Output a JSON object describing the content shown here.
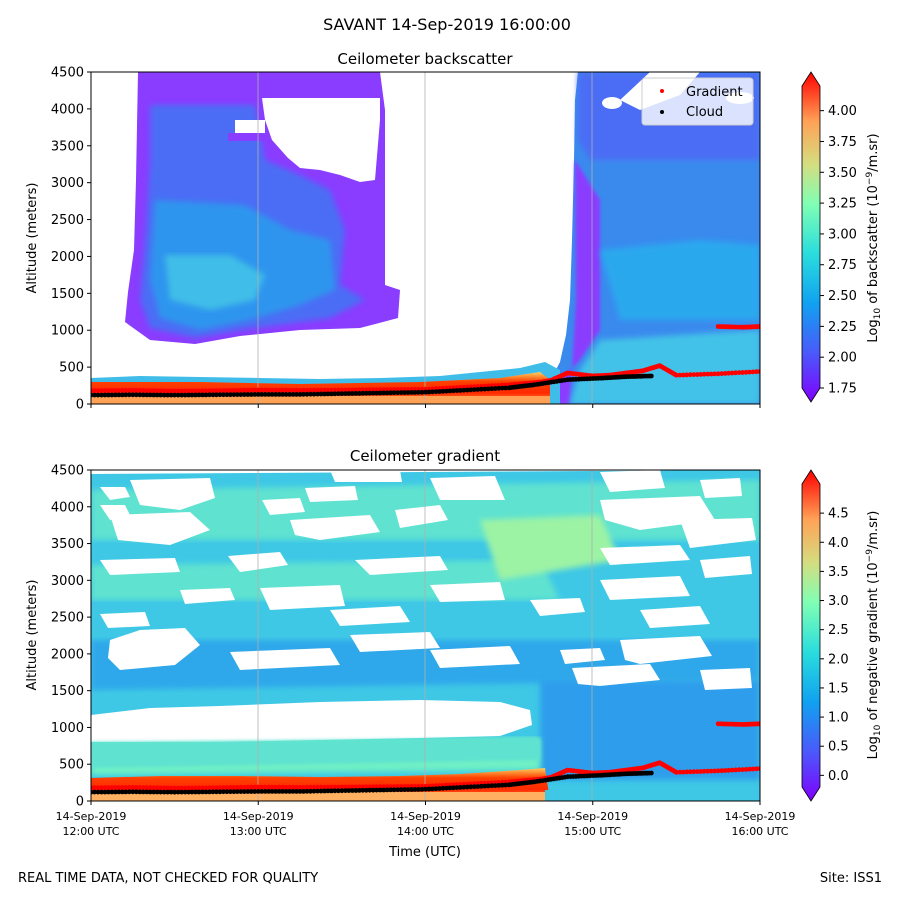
{
  "figure": {
    "suptitle": "SAVANT 14-Sep-2019 16:00:00",
    "footer_left": "REAL TIME DATA, NOT CHECKED FOR QUALITY",
    "footer_right": "Site: ISS1"
  },
  "chart_data": [
    {
      "type": "heatmap",
      "title": "Ceilometer backscatter",
      "ylabel": "Altitude (meters)",
      "xlabel": "",
      "ylim": [
        0,
        4500
      ],
      "yticks": [
        0,
        500,
        1000,
        1500,
        2000,
        2500,
        3000,
        3500,
        4000,
        4500
      ],
      "xlim_hours_utc": [
        12,
        16
      ],
      "xgrid_hours_utc": [
        13,
        14,
        15
      ],
      "colorbar": {
        "label_prefix": "Log",
        "label_sub": "10",
        "label_mid": " of backscatter (10",
        "label_sup": "−9",
        "label_suffix": "/m.sr)",
        "range": [
          1.75,
          4.2
        ],
        "ticks": [
          "1.75",
          "2.00",
          "2.25",
          "2.50",
          "2.75",
          "3.00",
          "3.25",
          "3.50",
          "3.75",
          "4.00"
        ],
        "colormap": "rainbow"
      },
      "legend": {
        "position": "upper-right",
        "entries": [
          {
            "label": "Gradient",
            "color": "#ff0000"
          },
          {
            "label": "Cloud",
            "color": "#000000"
          }
        ]
      },
      "series": [
        {
          "name": "Gradient",
          "color": "#ff0000",
          "x_hours": [
            12.0,
            12.25,
            12.5,
            12.75,
            13.0,
            13.25,
            13.5,
            13.75,
            14.0,
            14.25,
            14.5,
            14.7,
            14.75,
            14.85,
            15.0,
            15.1,
            15.2,
            15.3,
            15.4,
            15.5,
            15.75,
            16.0
          ],
          "altitude_m": [
            180,
            185,
            175,
            180,
            190,
            185,
            190,
            195,
            200,
            230,
            260,
            300,
            320,
            420,
            380,
            390,
            420,
            450,
            520,
            390,
            410,
            440
          ]
        },
        {
          "name": "Gradient upper layer",
          "color": "#ff0000",
          "x_hours": [
            15.75,
            15.9,
            16.0
          ],
          "altitude_m": [
            1050,
            1040,
            1050
          ]
        },
        {
          "name": "Cloud",
          "color": "#000000",
          "x_hours": [
            12.0,
            12.25,
            12.5,
            12.75,
            13.0,
            13.25,
            13.5,
            13.75,
            14.0,
            14.25,
            14.5,
            14.65,
            14.85,
            15.05,
            15.2,
            15.35
          ],
          "altitude_m": [
            120,
            125,
            120,
            125,
            130,
            130,
            140,
            150,
            160,
            190,
            220,
            260,
            330,
            350,
            370,
            380
          ]
        }
      ]
    },
    {
      "type": "heatmap",
      "title": "Ceilometer gradient",
      "ylabel": "Altitude (meters)",
      "xlabel": "Time (UTC)",
      "ylim": [
        0,
        4500
      ],
      "yticks": [
        0,
        500,
        1000,
        1500,
        2000,
        2500,
        3000,
        3500,
        4000,
        4500
      ],
      "xlim_hours_utc": [
        12,
        16
      ],
      "xgrid_hours_utc": [
        13,
        14,
        15
      ],
      "xticks": [
        {
          "hour": 12,
          "line1": "14-Sep-2019",
          "line2": "12:00 UTC"
        },
        {
          "hour": 13,
          "line1": "14-Sep-2019",
          "line2": "13:00 UTC"
        },
        {
          "hour": 14,
          "line1": "14-Sep-2019",
          "line2": "14:00 UTC"
        },
        {
          "hour": 15,
          "line1": "14-Sep-2019",
          "line2": "15:00 UTC"
        },
        {
          "hour": 16,
          "line1": "14-Sep-2019",
          "line2": "16:00 UTC"
        }
      ],
      "colorbar": {
        "label_prefix": "Log",
        "label_sub": "10",
        "label_mid": " of negative gradient (10",
        "label_sup": "−9",
        "label_suffix": "/m.sr)",
        "range": [
          -0.2,
          5.0
        ],
        "ticks": [
          "0.0",
          "0.5",
          "1.0",
          "1.5",
          "2.0",
          "2.5",
          "3.0",
          "3.5",
          "4.0",
          "4.5"
        ],
        "colormap": "rainbow"
      },
      "series": [
        {
          "name": "Gradient",
          "color": "#ff0000",
          "x_hours": [
            12.0,
            12.25,
            12.5,
            12.75,
            13.0,
            13.25,
            13.5,
            13.75,
            14.0,
            14.25,
            14.5,
            14.7,
            14.75,
            14.85,
            15.0,
            15.1,
            15.2,
            15.3,
            15.4,
            15.5,
            15.75,
            16.0
          ],
          "altitude_m": [
            180,
            185,
            175,
            180,
            190,
            185,
            190,
            195,
            200,
            230,
            260,
            300,
            320,
            420,
            380,
            390,
            420,
            450,
            520,
            390,
            410,
            440
          ]
        },
        {
          "name": "Gradient upper layer",
          "color": "#ff0000",
          "x_hours": [
            15.75,
            15.9,
            16.0
          ],
          "altitude_m": [
            1050,
            1040,
            1050
          ]
        },
        {
          "name": "Cloud",
          "color": "#000000",
          "x_hours": [
            12.0,
            12.25,
            12.5,
            12.75,
            13.0,
            13.25,
            13.5,
            13.75,
            14.0,
            14.25,
            14.5,
            14.65,
            14.85,
            15.05,
            15.2,
            15.35
          ],
          "altitude_m": [
            120,
            125,
            120,
            125,
            130,
            130,
            140,
            150,
            160,
            190,
            220,
            260,
            330,
            350,
            370,
            380
          ]
        }
      ]
    }
  ]
}
